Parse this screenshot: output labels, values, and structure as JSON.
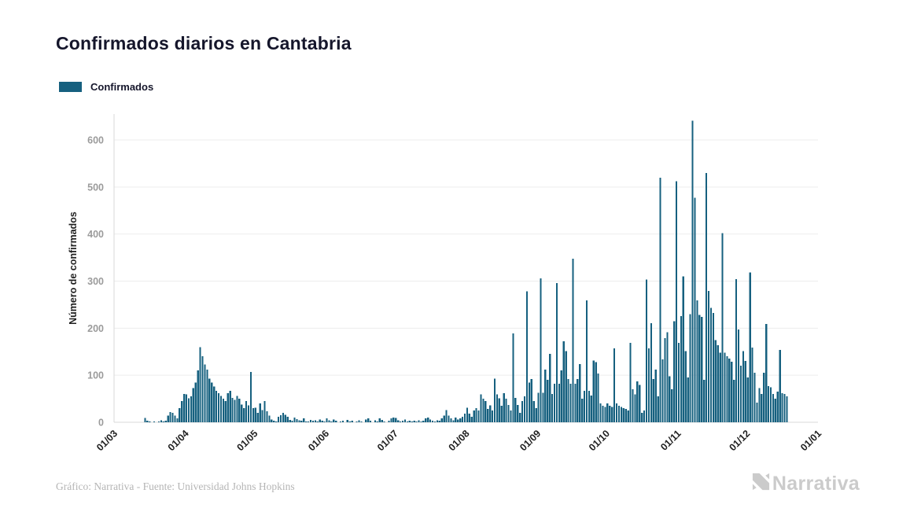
{
  "title": "Confirmados diarios en Cantabria",
  "legend": {
    "label": "Confirmados",
    "color": "#16607f"
  },
  "footer": {
    "credit": "Gráfico: Narrativa - Fuente: Universidad Johns Hopkins",
    "logo_text": "Narrativa"
  },
  "colors": {
    "bar": "#16607f",
    "title_text": "#15162b",
    "axis_label_text": "#1f1f1f",
    "y_tick_text": "#9b9b9b",
    "gridline": "#ededed",
    "axis_line": "#d9d9d9",
    "credit_text": "#b5b5b5",
    "logo_gray": "#cbcbcb",
    "background": "#ffffff"
  },
  "chart_data": {
    "type": "bar",
    "title": "Confirmados diarios en Cantabria",
    "xlabel": "",
    "ylabel": "Número de confirmados",
    "ylim": [
      0,
      650
    ],
    "yticks": [
      0,
      100,
      200,
      300,
      400,
      500,
      600
    ],
    "grid": true,
    "legend_position": "top-left",
    "x_start_date": "2020-03-01",
    "x_axis_total_days": 306,
    "x_tick_labels": [
      "01/03",
      "01/04",
      "01/05",
      "01/06",
      "01/07",
      "01/08",
      "01/09",
      "01/10",
      "01/11",
      "01/12",
      "01/01"
    ],
    "x_tick_day_offsets": [
      0,
      31,
      61,
      92,
      122,
      153,
      184,
      214,
      245,
      275,
      306
    ],
    "series": [
      {
        "name": "Confirmados",
        "color": "#16607f",
        "daily_values": [
          0,
          0,
          0,
          0,
          0,
          0,
          0,
          0,
          0,
          0,
          0,
          0,
          0,
          9,
          3,
          2,
          0,
          2,
          0,
          2,
          4,
          2,
          3,
          14,
          22,
          20,
          14,
          8,
          30,
          45,
          60,
          59,
          51,
          55,
          73,
          84,
          110,
          160,
          140,
          123,
          112,
          93,
          84,
          76,
          67,
          62,
          56,
          50,
          45,
          62,
          67,
          52,
          48,
          56,
          50,
          38,
          30,
          45,
          36,
          107,
          30,
          31,
          20,
          40,
          26,
          45,
          23,
          14,
          6,
          3,
          2,
          12,
          15,
          20,
          16,
          12,
          5,
          3,
          10,
          7,
          4,
          3,
          8,
          2,
          2,
          5,
          3,
          4,
          2,
          6,
          3,
          2,
          8,
          4,
          2,
          6,
          3,
          0,
          2,
          3,
          0,
          5,
          2,
          3,
          0,
          2,
          4,
          2,
          0,
          6,
          8,
          3,
          0,
          4,
          2,
          8,
          5,
          2,
          0,
          3,
          8,
          10,
          9,
          4,
          2,
          3,
          6,
          2,
          3,
          2,
          3,
          2,
          4,
          2,
          3,
          8,
          10,
          6,
          3,
          2,
          4,
          3,
          8,
          14,
          26,
          14,
          8,
          4,
          10,
          6,
          8,
          12,
          18,
          31,
          18,
          12,
          25,
          30,
          25,
          59,
          50,
          45,
          28,
          36,
          25,
          93,
          59,
          51,
          35,
          62,
          50,
          37,
          25,
          189,
          52,
          37,
          20,
          45,
          55,
          278,
          84,
          92,
          45,
          30,
          63,
          306,
          63,
          112,
          90,
          145,
          60,
          82,
          296,
          82,
          110,
          172,
          151,
          92,
          82,
          348,
          82,
          92,
          124,
          50,
          67,
          259,
          67,
          57,
          131,
          128,
          104,
          40,
          35,
          33,
          40,
          35,
          33,
          157,
          40,
          35,
          33,
          30,
          28,
          25,
          169,
          70,
          59,
          87,
          79,
          20,
          25,
          303,
          157,
          211,
          92,
          112,
          55,
          520,
          134,
          179,
          191,
          98,
          70,
          215,
          512,
          169,
          226,
          310,
          151,
          95,
          230,
          641,
          477,
          259,
          228,
          224,
          90,
          530,
          279,
          243,
          232,
          175,
          164,
          148,
          402,
          148,
          140,
          135,
          129,
          90,
          304,
          197,
          120,
          151,
          130,
          95,
          318,
          159,
          105,
          42,
          73,
          60,
          105,
          209,
          77,
          74,
          60,
          50,
          65,
          154,
          62,
          60,
          55
        ]
      }
    ]
  }
}
